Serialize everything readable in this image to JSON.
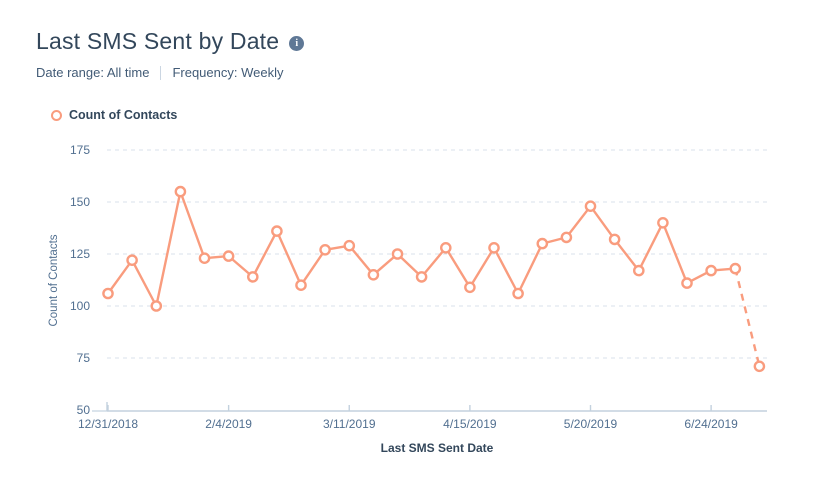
{
  "header": {
    "title": "Last SMS Sent by Date",
    "info_icon_glyph": "i",
    "date_range": "Date range: All time",
    "frequency": "Frequency: Weekly"
  },
  "legend": {
    "label": "Count of Contacts"
  },
  "colors": {
    "accent": "#f99c7e",
    "marker_fill": "#ffffff",
    "grid": "#d9e2eb",
    "axis": "#c3d1de",
    "tick_text": "#516f90",
    "text_dark": "#33475b",
    "info_icon_bg": "#5f7896"
  },
  "chart_data": {
    "type": "line",
    "title": "Last SMS Sent by Date",
    "xlabel": "Last SMS Sent Date",
    "ylabel": "Count of Contacts",
    "legend_position": "top-left",
    "grid": true,
    "ylim": [
      50,
      175
    ],
    "yticks": [
      50,
      75,
      100,
      125,
      150,
      175
    ],
    "x": [
      "12/31/2018",
      "1/7/2019",
      "1/14/2019",
      "1/21/2019",
      "1/28/2019",
      "2/4/2019",
      "2/11/2019",
      "2/18/2019",
      "2/25/2019",
      "3/4/2019",
      "3/11/2019",
      "3/18/2019",
      "3/25/2019",
      "4/1/2019",
      "4/8/2019",
      "4/15/2019",
      "4/22/2019",
      "4/29/2019",
      "5/6/2019",
      "5/13/2019",
      "5/20/2019",
      "5/27/2019",
      "6/3/2019",
      "6/10/2019",
      "6/17/2019",
      "6/24/2019",
      "7/1/2019",
      "7/8/2019"
    ],
    "x_tick_indices": [
      0,
      5,
      10,
      15,
      20,
      25
    ],
    "x_tick_labels": [
      "12/31/2018",
      "2/4/2019",
      "3/11/2019",
      "4/15/2019",
      "5/20/2019",
      "6/24/2019"
    ],
    "series": [
      {
        "name": "Count of Contacts",
        "values": [
          106,
          122,
          100,
          155,
          123,
          124,
          114,
          136,
          110,
          127,
          129,
          115,
          125,
          114,
          128,
          109,
          128,
          106,
          130,
          133,
          148,
          132,
          117,
          140,
          111,
          117,
          118,
          71
        ]
      }
    ],
    "last_segment_dashed": true
  }
}
